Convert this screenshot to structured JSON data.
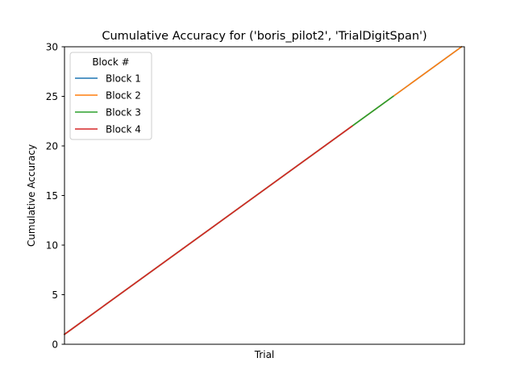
{
  "chart_data": {
    "type": "line",
    "title": "Cumulative Accuracy for ('boris_pilot2', 'TrialDigitSpan')",
    "xlabel": "Trial",
    "ylabel": "Cumulative Accuracy",
    "xlim": [
      1,
      30.2
    ],
    "ylim": [
      0,
      30
    ],
    "yticks": [
      0,
      5,
      10,
      15,
      20,
      25,
      30
    ],
    "xticks": [],
    "grid": false,
    "legend": {
      "title": "Block #",
      "position": "top-left"
    },
    "series": [
      {
        "name": "Block 1",
        "color": "#1f77b4",
        "x": [
          1,
          30
        ],
        "y": [
          1,
          30
        ]
      },
      {
        "name": "Block 2",
        "color": "#ff7f0e",
        "x": [
          1,
          30
        ],
        "y": [
          1,
          30
        ]
      },
      {
        "name": "Block 3",
        "color": "#2ca02c",
        "x": [
          1,
          25
        ],
        "y": [
          1,
          25
        ]
      },
      {
        "name": "Block 4",
        "color": "#d62728",
        "x": [
          1,
          22
        ],
        "y": [
          1,
          22
        ]
      }
    ]
  }
}
